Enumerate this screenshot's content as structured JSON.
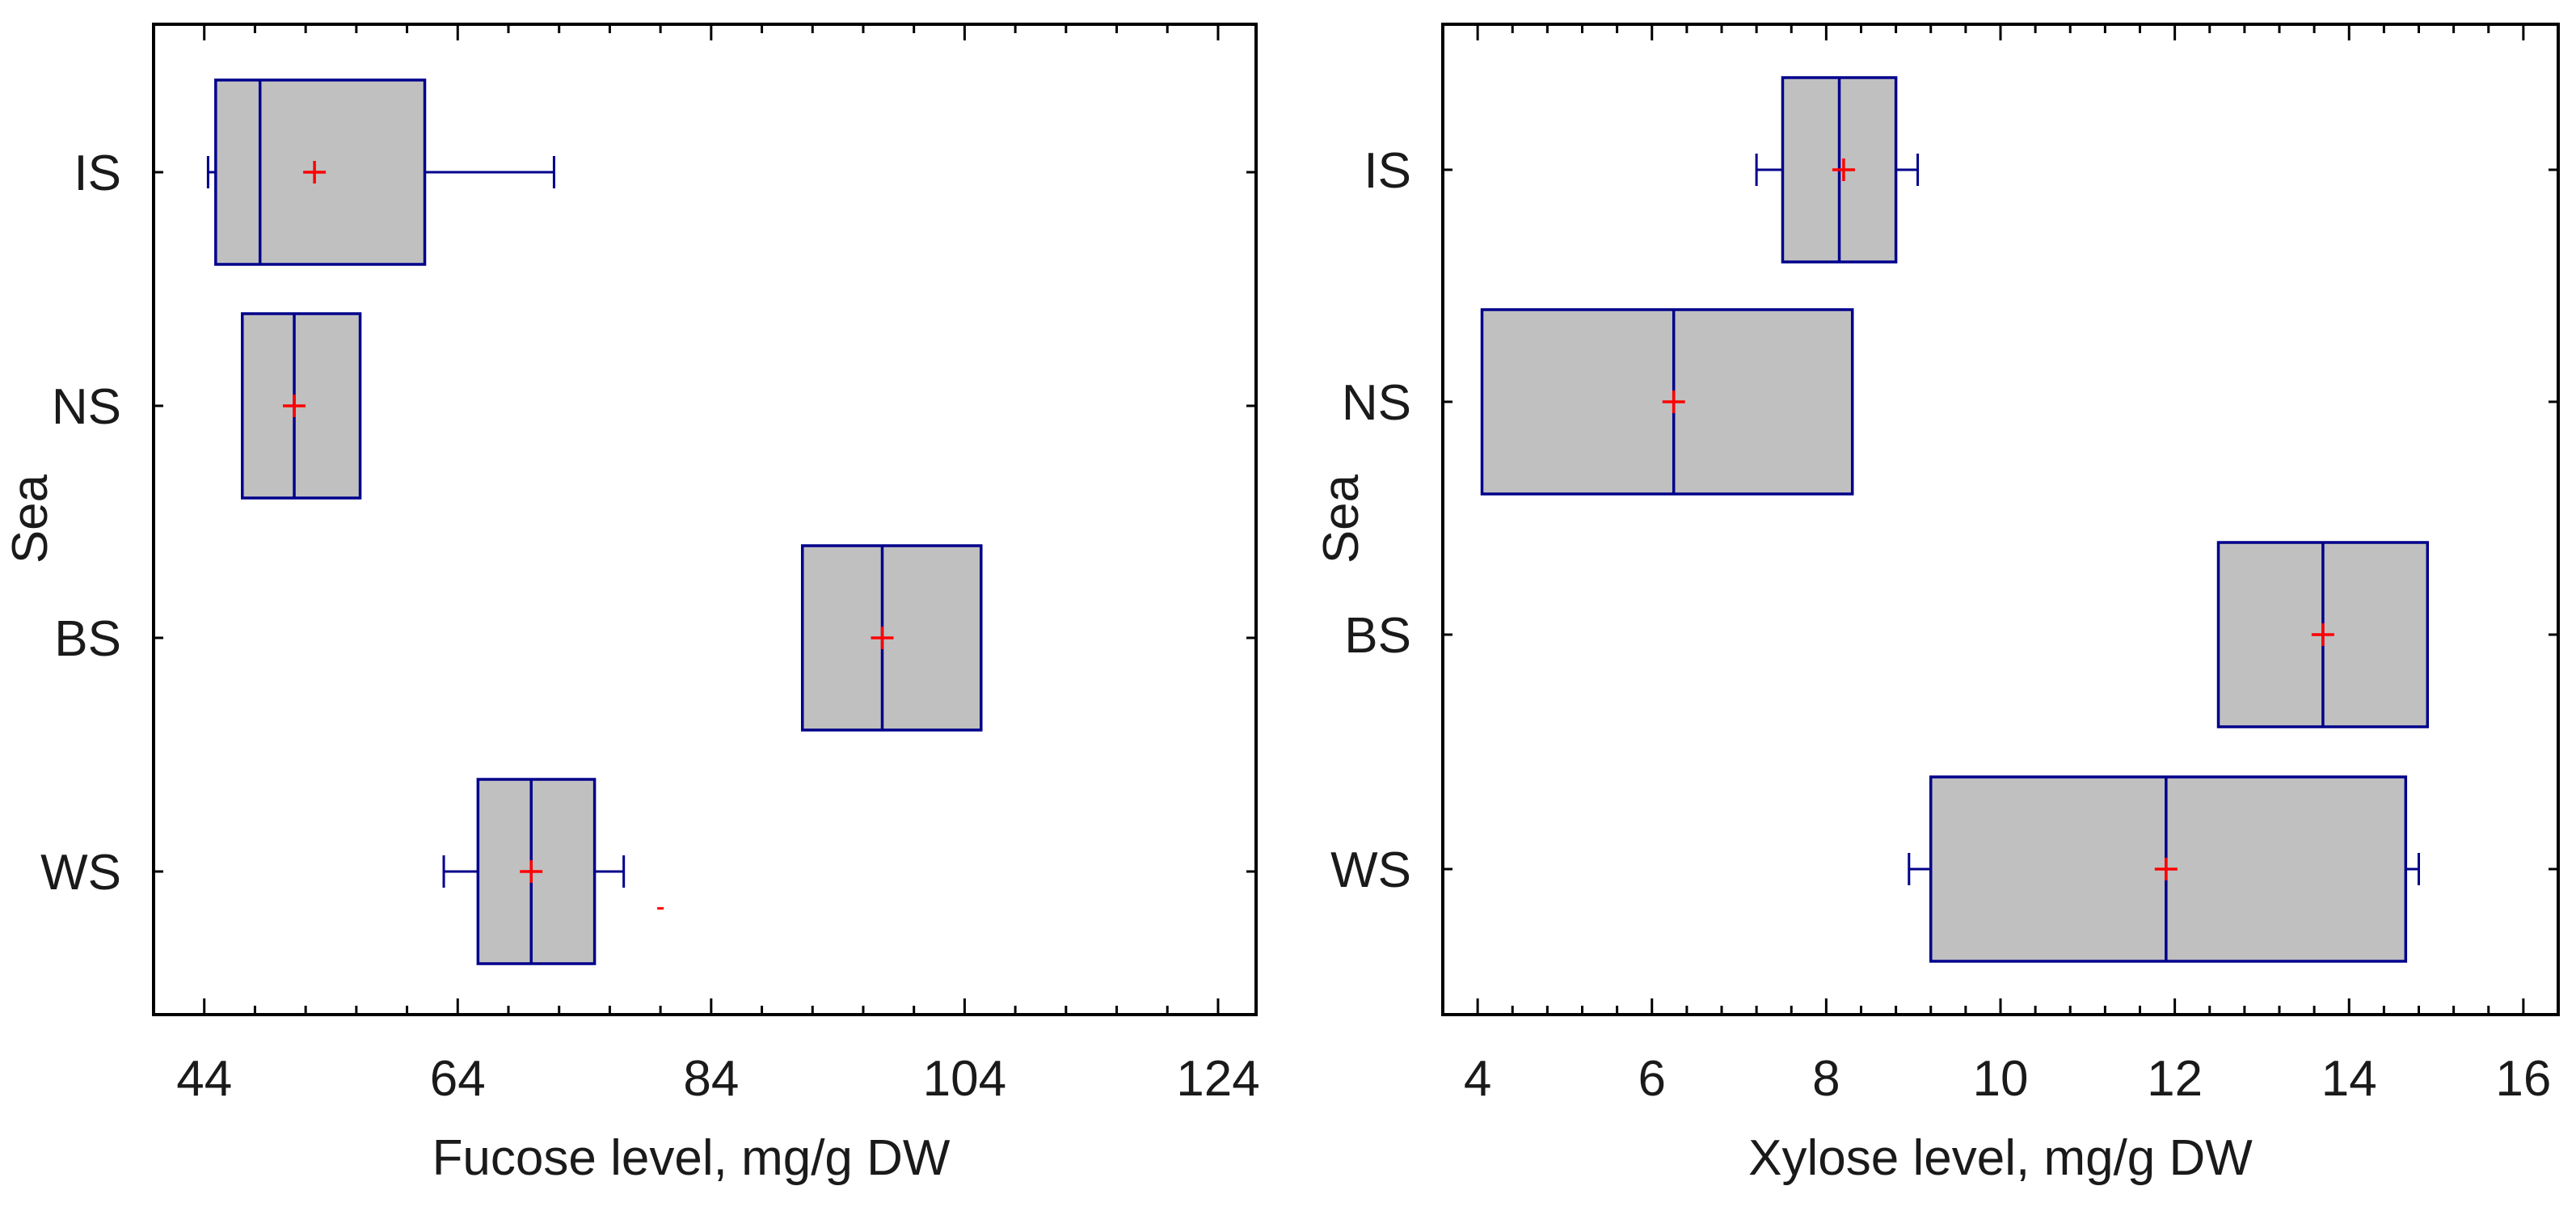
{
  "colors": {
    "box_fill": "#c0c0c0",
    "box_stroke": "#00008b",
    "mean_marker": "#ff0000",
    "frame": "#000000",
    "text": "#1a1a1a"
  },
  "chart_data": [
    {
      "type": "boxplot",
      "orientation": "horizontal",
      "title": "",
      "xlabel": "Fucose level, mg/g DW",
      "ylabel": "Sea",
      "xlim": [
        40,
        127
      ],
      "xticks": [
        44,
        64,
        84,
        104,
        124
      ],
      "x_minor_step": 4,
      "categories": [
        "IS",
        "NS",
        "BS",
        "WS"
      ],
      "series": [
        {
          "name": "IS",
          "min": 44.3,
          "q1": 44.9,
          "median": 48.4,
          "q3": 61.4,
          "max": 71.6,
          "mean": 52.7
        },
        {
          "name": "NS",
          "min": 47.0,
          "q1": 47.0,
          "median": 51.1,
          "q3": 56.3,
          "max": 56.3,
          "mean": 51.1
        },
        {
          "name": "BS",
          "min": 91.2,
          "q1": 91.2,
          "median": 97.5,
          "q3": 105.3,
          "max": 105.3,
          "mean": 97.5
        },
        {
          "name": "WS",
          "min": 62.9,
          "q1": 65.6,
          "median": 69.8,
          "q3": 74.8,
          "max": 77.1,
          "mean": 69.8
        }
      ],
      "outliers": [
        {
          "category": "WS",
          "value": 80.0,
          "offset": 0.2
        }
      ]
    },
    {
      "type": "boxplot",
      "orientation": "horizontal",
      "title": "",
      "xlabel": "Xylose level, mg/g DW",
      "ylabel": "Sea",
      "xlim": [
        3.6,
        16.4
      ],
      "xticks": [
        4,
        6,
        8,
        10,
        12,
        14,
        16
      ],
      "x_minor_step": 0.4,
      "categories": [
        "IS",
        "NS",
        "BS",
        "WS"
      ],
      "series": [
        {
          "name": "IS",
          "min": 7.2,
          "q1": 7.5,
          "median": 8.15,
          "q3": 8.8,
          "max": 9.05,
          "mean": 8.2
        },
        {
          "name": "NS",
          "min": 4.05,
          "q1": 4.05,
          "median": 6.25,
          "q3": 8.3,
          "max": 8.3,
          "mean": 6.25
        },
        {
          "name": "BS",
          "min": 12.5,
          "q1": 12.5,
          "median": 13.7,
          "q3": 14.9,
          "max": 14.9,
          "mean": 13.7
        },
        {
          "name": "WS",
          "min": 8.95,
          "q1": 9.2,
          "median": 11.9,
          "q3": 14.65,
          "max": 14.8,
          "mean": 11.9
        }
      ],
      "outliers": []
    }
  ]
}
